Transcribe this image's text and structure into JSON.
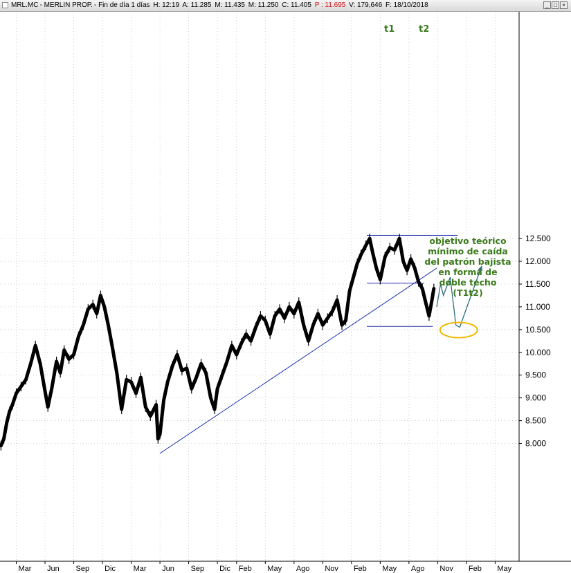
{
  "window": {
    "title_parts": {
      "symbol": "MRL.MC",
      "name": "MERLIN PROP.",
      "period": "Fin de día 1 días",
      "hour": "H: 12:19",
      "open": "A: 11.285",
      "high": "M: 11.435",
      "low": "M: 11.250",
      "close": "C: 11.405",
      "prev": "P : 11.695",
      "volume": "V: 179,646",
      "date": "F: 18/10/2018"
    },
    "buttons": {
      "minimize": "_",
      "maximize": "□",
      "close": "×"
    },
    "colors": {
      "prev": "#d01010"
    }
  },
  "annotations": {
    "peak1_label": "t1",
    "peak2_label": "t2",
    "note_lines": [
      "objetivo teórico",
      "mínimo de caída",
      "del patrón bajista",
      "en forma de",
      "doble techo",
      "(T1t2)"
    ],
    "colors": {
      "peaks": "#3a7a1a",
      "note": "#3a7a1a",
      "target_ellipse": "#f0b800",
      "projection": "#2e6e78",
      "trendlines": "#1f2fb0"
    }
  },
  "chart_data": {
    "type": "line",
    "title": "",
    "xlabel": "",
    "ylabel": "",
    "ylim": [
      7.6,
      12.65
    ],
    "y_ticks": [
      8.0,
      8.5,
      9.0,
      9.5,
      10.0,
      10.5,
      11.0,
      11.5,
      12.0,
      12.5
    ],
    "y_tick_labels": [
      "8.000",
      "8.500",
      "9.000",
      "9.500",
      "10.000",
      "10.500",
      "11.000",
      "11.500",
      "12.000",
      "12.500"
    ],
    "x_ticks": [
      "Mar",
      "Jun",
      "Sep",
      "Dic",
      "Mar",
      "Jun",
      "Sep",
      "Dic",
      "Feb",
      "May",
      "Ago",
      "Nov",
      "Feb",
      "May",
      "Ago",
      "Nov",
      "Feb",
      "May"
    ],
    "x_tick_index": [
      0,
      3,
      6,
      9,
      12,
      15,
      18,
      21,
      23,
      26,
      29,
      32,
      35,
      38,
      41,
      44,
      47,
      50
    ],
    "x_range_index": [
      -1.7,
      52.5
    ],
    "series": [
      {
        "values": [
          [
            -1.6,
            7.95
          ],
          [
            -1.3,
            8.1
          ],
          [
            -1.0,
            8.45
          ],
          [
            -0.7,
            8.7
          ],
          [
            -0.4,
            8.85
          ],
          [
            0.0,
            9.1
          ],
          [
            0.5,
            9.25
          ],
          [
            1.0,
            9.4
          ],
          [
            1.5,
            9.75
          ],
          [
            2.0,
            10.15
          ],
          [
            2.5,
            9.75
          ],
          [
            3.0,
            9.15
          ],
          [
            3.3,
            8.8
          ],
          [
            3.7,
            9.2
          ],
          [
            4.2,
            9.8
          ],
          [
            4.6,
            9.55
          ],
          [
            5.0,
            10.05
          ],
          [
            5.5,
            9.85
          ],
          [
            6.0,
            9.95
          ],
          [
            6.5,
            10.35
          ],
          [
            7.0,
            10.6
          ],
          [
            7.5,
            10.95
          ],
          [
            8.0,
            11.05
          ],
          [
            8.4,
            10.85
          ],
          [
            8.8,
            11.25
          ],
          [
            9.2,
            11.0
          ],
          [
            9.6,
            10.6
          ],
          [
            10.0,
            10.15
          ],
          [
            10.5,
            9.55
          ],
          [
            11.0,
            8.75
          ],
          [
            11.5,
            9.4
          ],
          [
            12.0,
            9.35
          ],
          [
            12.5,
            9.1
          ],
          [
            13.0,
            9.45
          ],
          [
            13.5,
            8.8
          ],
          [
            14.0,
            8.6
          ],
          [
            14.6,
            8.85
          ],
          [
            14.8,
            8.1
          ],
          [
            15.0,
            8.2
          ],
          [
            15.4,
            8.95
          ],
          [
            15.8,
            9.35
          ],
          [
            16.3,
            9.7
          ],
          [
            16.8,
            9.95
          ],
          [
            17.3,
            9.6
          ],
          [
            17.8,
            9.65
          ],
          [
            18.3,
            9.2
          ],
          [
            18.8,
            9.45
          ],
          [
            19.3,
            9.75
          ],
          [
            19.8,
            9.55
          ],
          [
            20.3,
            9.0
          ],
          [
            20.7,
            8.75
          ],
          [
            21.0,
            9.2
          ],
          [
            21.5,
            9.5
          ],
          [
            22.0,
            9.8
          ],
          [
            22.5,
            10.15
          ],
          [
            23.0,
            9.95
          ],
          [
            23.5,
            10.2
          ],
          [
            24.0,
            10.4
          ],
          [
            24.5,
            10.25
          ],
          [
            25.0,
            10.55
          ],
          [
            25.5,
            10.8
          ],
          [
            26.0,
            10.7
          ],
          [
            26.5,
            10.4
          ],
          [
            27.0,
            10.8
          ],
          [
            27.5,
            10.95
          ],
          [
            28.0,
            10.75
          ],
          [
            28.5,
            11.0
          ],
          [
            29.0,
            10.85
          ],
          [
            29.5,
            11.1
          ],
          [
            30.0,
            10.6
          ],
          [
            30.5,
            10.25
          ],
          [
            31.0,
            10.6
          ],
          [
            31.5,
            10.85
          ],
          [
            32.0,
            10.6
          ],
          [
            32.5,
            10.75
          ],
          [
            33.0,
            10.9
          ],
          [
            33.5,
            11.15
          ],
          [
            34.0,
            10.6
          ],
          [
            34.4,
            10.7
          ],
          [
            34.8,
            11.35
          ],
          [
            35.2,
            11.65
          ],
          [
            35.6,
            11.95
          ],
          [
            36.0,
            12.15
          ],
          [
            36.5,
            12.35
          ],
          [
            36.9,
            12.5
          ],
          [
            37.2,
            12.2
          ],
          [
            37.6,
            11.85
          ],
          [
            38.0,
            11.6
          ],
          [
            38.5,
            12.1
          ],
          [
            39.0,
            12.3
          ],
          [
            39.5,
            12.25
          ],
          [
            40.0,
            12.5
          ],
          [
            40.4,
            12.0
          ],
          [
            40.8,
            11.8
          ],
          [
            41.2,
            12.05
          ],
          [
            41.6,
            11.85
          ],
          [
            42.0,
            11.55
          ],
          [
            42.4,
            11.4
          ],
          [
            42.8,
            11.05
          ],
          [
            43.1,
            10.8
          ],
          [
            43.4,
            11.15
          ],
          [
            43.6,
            11.4
          ]
        ]
      }
    ],
    "overlays": {
      "uptrend_line": [
        [
          15.0,
          7.78
        ],
        [
          43.9,
          11.85
        ]
      ],
      "peak_level": [
        [
          36.6,
          12.57
        ],
        [
          46.1,
          12.57
        ]
      ],
      "neckline": [
        [
          36.6,
          11.52
        ],
        [
          42.6,
          11.52
        ]
      ],
      "target_level": [
        [
          36.6,
          10.57
        ],
        [
          43.5,
          10.57
        ]
      ],
      "projection_path": [
        [
          43.9,
          11.0
        ],
        [
          44.3,
          11.5
        ],
        [
          44.6,
          11.25
        ],
        [
          45.3,
          11.65
        ],
        [
          45.9,
          10.6
        ],
        [
          46.3,
          10.55
        ],
        [
          48.6,
          11.9
        ]
      ],
      "target_ellipse_center": [
        46.2,
        10.52
      ]
    }
  }
}
